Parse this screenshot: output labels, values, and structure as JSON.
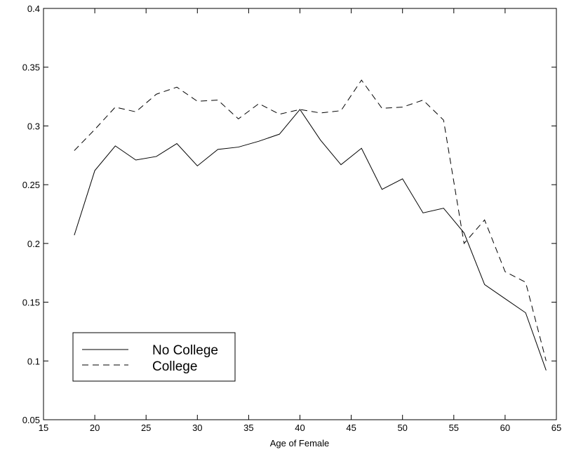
{
  "chart_data": {
    "type": "line",
    "title": "",
    "xlabel": "Age of Female",
    "ylabel": "",
    "xlim": [
      15,
      65
    ],
    "ylim": [
      0.05,
      0.4
    ],
    "xticks": [
      15,
      20,
      25,
      30,
      35,
      40,
      45,
      50,
      55,
      60,
      65
    ],
    "yticks": [
      0.05,
      0.1,
      0.15,
      0.2,
      0.25,
      0.3,
      0.35,
      0.4
    ],
    "xtick_labels": [
      "15",
      "20",
      "25",
      "30",
      "35",
      "40",
      "45",
      "50",
      "55",
      "60",
      "65"
    ],
    "ytick_labels": [
      "0.05",
      "0.1",
      "0.15",
      "0.2",
      "0.25",
      "0.3",
      "0.35",
      "0.4"
    ],
    "grid": false,
    "legend_position": "bottom-left",
    "x": [
      18,
      20,
      22,
      24,
      26,
      28,
      30,
      32,
      34,
      36,
      38,
      40,
      42,
      44,
      46,
      48,
      50,
      52,
      54,
      56,
      58,
      60,
      62,
      64
    ],
    "series": [
      {
        "name": "No College",
        "style": "solid",
        "values": [
          0.207,
          0.262,
          0.283,
          0.271,
          0.274,
          0.285,
          0.266,
          0.28,
          0.282,
          0.287,
          0.293,
          0.314,
          0.288,
          0.267,
          0.281,
          0.246,
          0.255,
          0.226,
          0.23,
          0.209,
          0.165,
          0.153,
          0.141,
          0.092
        ]
      },
      {
        "name": "College",
        "style": "dashed",
        "values": [
          0.279,
          0.297,
          0.316,
          0.312,
          0.327,
          0.333,
          0.321,
          0.322,
          0.306,
          0.319,
          0.31,
          0.314,
          0.311,
          0.313,
          0.339,
          0.315,
          0.316,
          0.322,
          0.305,
          0.2,
          0.22,
          0.176,
          0.167,
          0.1
        ]
      }
    ]
  }
}
